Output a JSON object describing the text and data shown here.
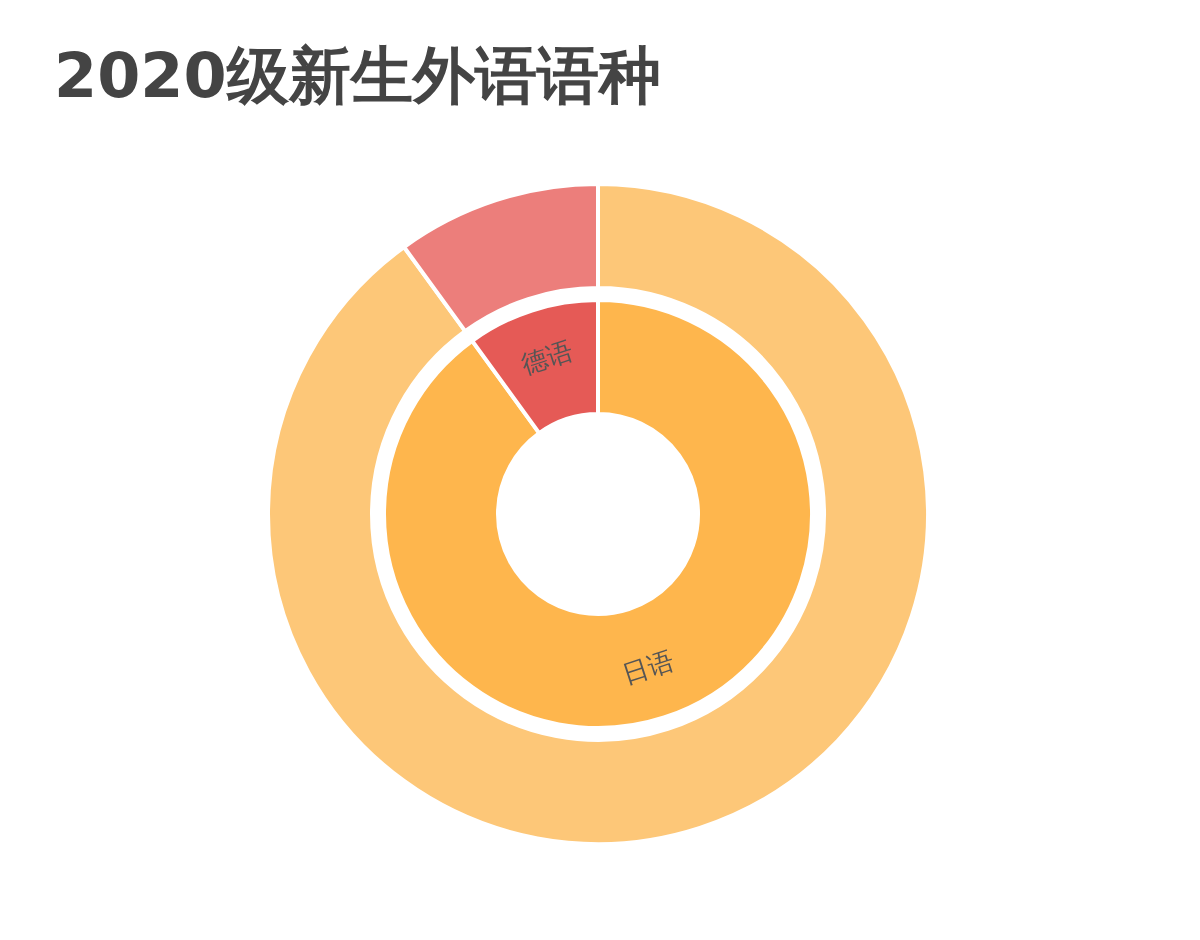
{
  "chart_data": [
    {
      "type": "donut",
      "title": "2020级新生外语语种",
      "legend": false,
      "categories": [
        null,
        null
      ],
      "values": [
        90,
        10
      ],
      "colors": [
        "#fdc778",
        "#ec7e7b"
      ]
    },
    {
      "type": "donut",
      "legend": false,
      "categories": [
        "日语",
        "德语"
      ],
      "values": [
        90,
        10
      ],
      "colors": [
        "#feb64d",
        "#e55a56"
      ]
    }
  ]
}
